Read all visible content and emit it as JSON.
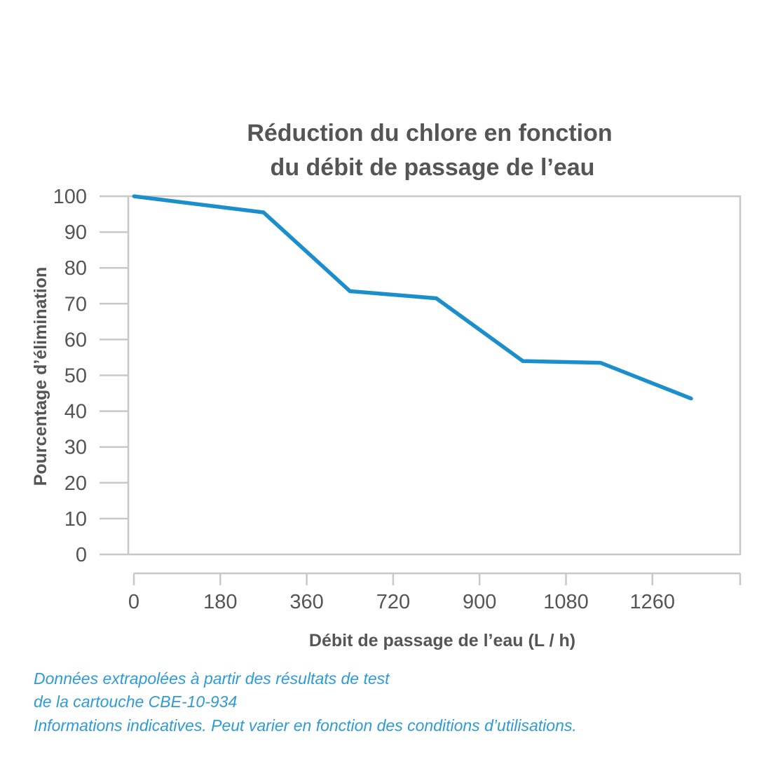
{
  "colors": {
    "line": "#1b8fcc",
    "frame": "#c8c8c8",
    "text": "#555555",
    "footnote": "#2e9bd6"
  },
  "chart_data": {
    "type": "line",
    "title_lines": [
      "Réduction du chlore en fonction",
      "du débit de passage de l’eau"
    ],
    "xlabel": "Débit de passage de l’eau (L / h)",
    "ylabel": "Pourcentage d’élimination",
    "x_ticks": [
      "0",
      "180",
      "360",
      "720",
      "900",
      "1080",
      "1260"
    ],
    "y_ticks": [
      "0",
      "10",
      "20",
      "30",
      "40",
      "50",
      "60",
      "70",
      "80",
      "90",
      "100"
    ],
    "ylim": [
      0,
      100
    ],
    "grid": false,
    "series": [
      {
        "x_positions": [
          0,
          1.5,
          2.5,
          3.5,
          4.5,
          5.4,
          6.45
        ],
        "values": [
          100,
          95.5,
          73.5,
          71.5,
          54,
          53.5,
          43.5
        ]
      }
    ]
  },
  "footnotes": [
    "Données extrapolées à partir des résultats de test",
    "de la cartouche CBE-10-934",
    "Informations indicatives. Peut varier en fonction des conditions d’utilisations."
  ]
}
